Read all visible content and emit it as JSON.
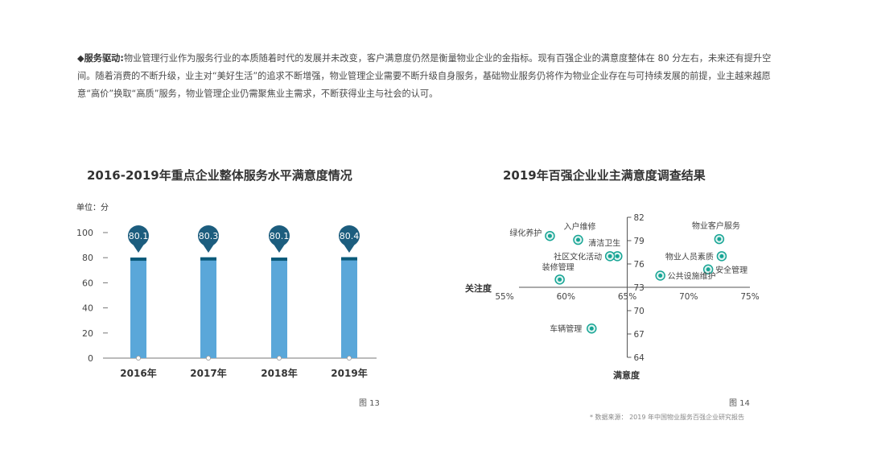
{
  "paragraph": {
    "lead": "◆服务驱动:",
    "text": "物业管理行业作为服务行业的本质随着时代的发展并未改变，客户满意度仍然是衡量物业企业的金指标。现有百强企业的满意度整体在 80 分左右，未来还有提升空间。随着消费的不断升级，业主对“美好生活”的追求不断增强，物业管理企业需要不断升级自身服务，基础物业服务仍将作为物业企业存在与可持续发展的前提，业主越来越愿意“高价”换取“高质”服务，物业管理企业仍需聚焦业主需求，不断获得业主与社会的认可。"
  },
  "figure_13": "图 13",
  "figure_14": "图 14",
  "source": "* 数据来源：  2019 年中国物业服务百强企业研究报告",
  "colors": {
    "bar": "#5aa7d9",
    "bar_dark": "#0b5a7a",
    "pin": "#1c5d7e",
    "dot": "#17a595",
    "axis": "#555555"
  },
  "chart_data": [
    {
      "type": "bar",
      "title": "2016-2019年重点企业整体服务水平满意度情况",
      "unit_label": "单位：分",
      "categories": [
        "2016年",
        "2017年",
        "2018年",
        "2019年"
      ],
      "values": [
        80.1,
        80.3,
        80.1,
        80.4
      ],
      "data_labels": [
        "80.1",
        "80.3",
        "80.1",
        "80.4"
      ],
      "yticks": [
        "0",
        "20",
        "40",
        "60",
        "80",
        "100"
      ],
      "ylim": [
        0,
        100
      ],
      "grid": false
    },
    {
      "type": "scatter",
      "title": "2019年百强企业业主满意度调查结果",
      "xlabel": "关注度",
      "ylabel": "满意度",
      "x_tick_labels": [
        "55%",
        "60%",
        "65%",
        "70%",
        "75%"
      ],
      "x_ticks": [
        55,
        60,
        65,
        70,
        75
      ],
      "y_tick_labels": [
        "64",
        "67",
        "70",
        "73",
        "76",
        "79",
        "82"
      ],
      "y_ticks": [
        64,
        67,
        70,
        73,
        76,
        79,
        82
      ],
      "xlim": [
        55,
        75
      ],
      "ylim": [
        64,
        82
      ],
      "axis_cross": {
        "x": 65,
        "y": 73
      },
      "points": [
        {
          "label": "绿化养护",
          "x": 58.7,
          "y": 79.6
        },
        {
          "label": "入户维修",
          "x": 61,
          "y": 79.1
        },
        {
          "label": "清洁卫生",
          "x": 64.2,
          "y": 77
        },
        {
          "label": "社区文化活动",
          "x": 63.6,
          "y": 77
        },
        {
          "label": "装修管理",
          "x": 59.5,
          "y": 74
        },
        {
          "label": "车辆管理",
          "x": 62.1,
          "y": 67.7
        },
        {
          "label": "物业客户服务",
          "x": 72.5,
          "y": 79.2
        },
        {
          "label": "物业人员素质",
          "x": 72.7,
          "y": 77
        },
        {
          "label": "安全管理",
          "x": 71.6,
          "y": 75.3
        },
        {
          "label": "公共设施维护",
          "x": 67.7,
          "y": 74.5
        }
      ],
      "grid": false
    }
  ]
}
